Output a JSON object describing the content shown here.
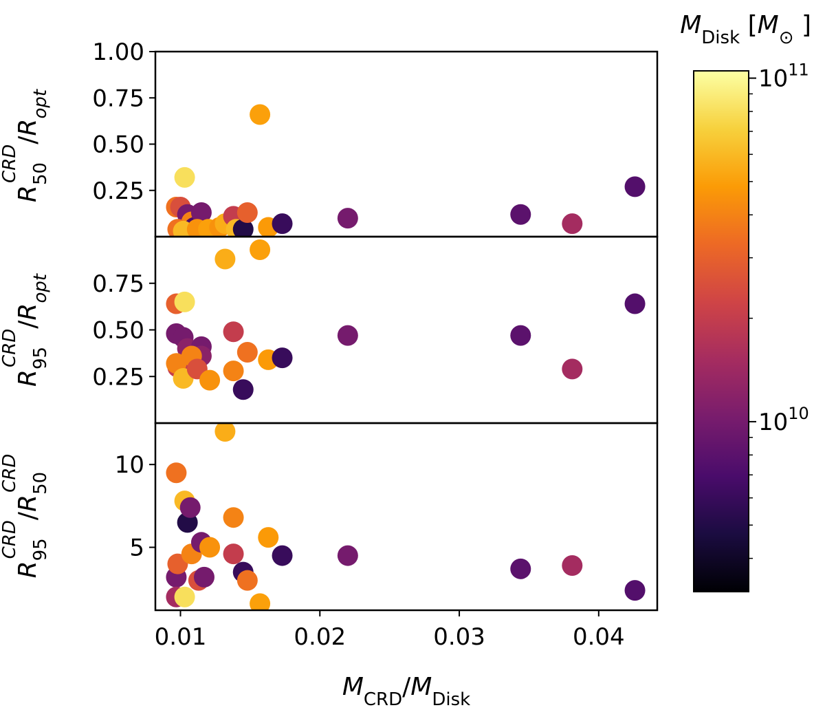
{
  "chart_data": {
    "type": "scatter",
    "xlabel": {
      "base": "M",
      "base_sub": "CRD",
      "slash": "/",
      "base2": "M",
      "base2_sub": "Disk"
    },
    "x_ticks": [
      "0.01",
      "0.02",
      "0.03",
      "0.04"
    ],
    "xlim": [
      0.0082,
      0.0442
    ],
    "colorbar": {
      "title": {
        "base": "M",
        "sub": "Disk",
        "unit_open": " [",
        "unit": "M",
        "unit_sub": "⊙",
        "unit_close": " ]"
      },
      "scale": "log",
      "range": [
        3200000000.0,
        105000000000.0
      ],
      "ticks": [
        {
          "base": "10",
          "exp": "11",
          "value": 100000000000.0
        },
        {
          "base": "10",
          "exp": "10",
          "value": 10000000000.0
        }
      ],
      "colormap": "inferno",
      "colormap_stops": [
        "#000004",
        "#1b0c41",
        "#4a0c6b",
        "#781c6d",
        "#a52c60",
        "#cf4446",
        "#ed6925",
        "#fb9b06",
        "#f7d13d",
        "#fcffa4"
      ]
    },
    "panels": [
      {
        "ylabel": {
          "base": "R",
          "sub": "50",
          "sup": "CRD",
          "slash": "/",
          "base2": "R",
          "base2_sub": "opt"
        },
        "ylim": [
          0.0,
          1.0
        ],
        "y_ticks": [
          "0.25",
          "0.50",
          "0.75",
          "1.00"
        ],
        "points": [
          {
            "x": 0.0097,
            "y": 0.16,
            "c": 35000000000.0
          },
          {
            "x": 0.01,
            "y": 0.16,
            "c": 25000000000.0
          },
          {
            "x": 0.0103,
            "y": 0.32,
            "c": 80000000000.0
          },
          {
            "x": 0.0105,
            "y": 0.12,
            "c": 10000000000.0
          },
          {
            "x": 0.0108,
            "y": 0.08,
            "c": 40000000000.0
          },
          {
            "x": 0.011,
            "y": 0.05,
            "c": 7000000000.0
          },
          {
            "x": 0.0115,
            "y": 0.13,
            "c": 10000000000.0
          },
          {
            "x": 0.0098,
            "y": 0.04,
            "c": 35000000000.0
          },
          {
            "x": 0.0102,
            "y": 0.03,
            "c": 60000000000.0
          },
          {
            "x": 0.0112,
            "y": 0.04,
            "c": 45000000000.0
          },
          {
            "x": 0.012,
            "y": 0.04,
            "c": 50000000000.0
          },
          {
            "x": 0.0128,
            "y": 0.05,
            "c": 45000000000.0
          },
          {
            "x": 0.0132,
            "y": 0.07,
            "c": 55000000000.0
          },
          {
            "x": 0.0138,
            "y": 0.11,
            "c": 20000000000.0
          },
          {
            "x": 0.014,
            "y": 0.04,
            "c": 60000000000.0
          },
          {
            "x": 0.0145,
            "y": 0.04,
            "c": 5000000000.0
          },
          {
            "x": 0.0148,
            "y": 0.13,
            "c": 30000000000.0
          },
          {
            "x": 0.0157,
            "y": 0.66,
            "c": 50000000000.0
          },
          {
            "x": 0.0163,
            "y": 0.05,
            "c": 48000000000.0
          },
          {
            "x": 0.0173,
            "y": 0.07,
            "c": 6000000000.0
          },
          {
            "x": 0.022,
            "y": 0.1,
            "c": 10000000000.0
          },
          {
            "x": 0.0344,
            "y": 0.12,
            "c": 8000000000.0
          },
          {
            "x": 0.0381,
            "y": 0.07,
            "c": 15000000000.0
          },
          {
            "x": 0.0426,
            "y": 0.27,
            "c": 7500000000.0
          }
        ]
      },
      {
        "ylabel": {
          "base": "R",
          "sub": "95",
          "sup": "CRD",
          "slash": "/",
          "base2": "R",
          "base2_sub": "opt"
        },
        "ylim": [
          0.0,
          1.0
        ],
        "y_ticks": [
          "0.25",
          "0.50",
          "0.75"
        ],
        "points": [
          {
            "x": 0.0097,
            "y": 0.48,
            "c": 10000000000.0
          },
          {
            "x": 0.0097,
            "y": 0.64,
            "c": 30000000000.0
          },
          {
            "x": 0.0103,
            "y": 0.65,
            "c": 80000000000.0
          },
          {
            "x": 0.0102,
            "y": 0.46,
            "c": 10000000000.0
          },
          {
            "x": 0.0105,
            "y": 0.4,
            "c": 12000000000.0
          },
          {
            "x": 0.0115,
            "y": 0.41,
            "c": 10000000000.0
          },
          {
            "x": 0.0115,
            "y": 0.36,
            "c": 12000000000.0
          },
          {
            "x": 0.0098,
            "y": 0.3,
            "c": 20000000000.0
          },
          {
            "x": 0.0097,
            "y": 0.32,
            "c": 40000000000.0
          },
          {
            "x": 0.0102,
            "y": 0.24,
            "c": 60000000000.0
          },
          {
            "x": 0.0108,
            "y": 0.36,
            "c": 40000000000.0
          },
          {
            "x": 0.0112,
            "y": 0.29,
            "c": 25000000000.0
          },
          {
            "x": 0.0121,
            "y": 0.23,
            "c": 45000000000.0
          },
          {
            "x": 0.0132,
            "y": 0.88,
            "c": 55000000000.0
          },
          {
            "x": 0.0138,
            "y": 0.49,
            "c": 20000000000.0
          },
          {
            "x": 0.0138,
            "y": 0.28,
            "c": 40000000000.0
          },
          {
            "x": 0.0145,
            "y": 0.18,
            "c": 6000000000.0
          },
          {
            "x": 0.0148,
            "y": 0.38,
            "c": 35000000000.0
          },
          {
            "x": 0.0157,
            "y": 0.93,
            "c": 50000000000.0
          },
          {
            "x": 0.0163,
            "y": 0.34,
            "c": 48000000000.0
          },
          {
            "x": 0.0173,
            "y": 0.35,
            "c": 6000000000.0
          },
          {
            "x": 0.022,
            "y": 0.47,
            "c": 10000000000.0
          },
          {
            "x": 0.0344,
            "y": 0.47,
            "c": 8000000000.0
          },
          {
            "x": 0.0381,
            "y": 0.29,
            "c": 15000000000.0
          },
          {
            "x": 0.0426,
            "y": 0.64,
            "c": 7500000000.0
          }
        ]
      },
      {
        "ylabel": {
          "base": "R",
          "sub": "95",
          "sup": "CRD",
          "slash": "/",
          "base2": "R",
          "base2_sub": "50",
          "base2_sup": "CRD"
        },
        "ylim": [
          1.2,
          12.5
        ],
        "y_ticks": [
          "5",
          "10"
        ],
        "points": [
          {
            "x": 0.0097,
            "y": 9.5,
            "c": 35000000000.0
          },
          {
            "x": 0.0097,
            "y": 3.2,
            "c": 10000000000.0
          },
          {
            "x": 0.0097,
            "y": 2.0,
            "c": 15000000000.0
          },
          {
            "x": 0.0098,
            "y": 4.0,
            "c": 30000000000.0
          },
          {
            "x": 0.0103,
            "y": 7.8,
            "c": 60000000000.0
          },
          {
            "x": 0.0105,
            "y": 6.5,
            "c": 5000000000.0
          },
          {
            "x": 0.0107,
            "y": 7.4,
            "c": 10000000000.0
          },
          {
            "x": 0.0103,
            "y": 2.0,
            "c": 80000000000.0
          },
          {
            "x": 0.0108,
            "y": 4.6,
            "c": 40000000000.0
          },
          {
            "x": 0.0113,
            "y": 3.0,
            "c": 25000000000.0
          },
          {
            "x": 0.0115,
            "y": 5.3,
            "c": 10000000000.0
          },
          {
            "x": 0.0117,
            "y": 3.2,
            "c": 10000000000.0
          },
          {
            "x": 0.0121,
            "y": 5.0,
            "c": 45000000000.0
          },
          {
            "x": 0.0132,
            "y": 12.0,
            "c": 55000000000.0
          },
          {
            "x": 0.0138,
            "y": 6.8,
            "c": 40000000000.0
          },
          {
            "x": 0.0138,
            "y": 4.6,
            "c": 20000000000.0
          },
          {
            "x": 0.0145,
            "y": 3.5,
            "c": 6000000000.0
          },
          {
            "x": 0.0148,
            "y": 3.0,
            "c": 35000000000.0
          },
          {
            "x": 0.0157,
            "y": 1.6,
            "c": 50000000000.0
          },
          {
            "x": 0.0163,
            "y": 5.6,
            "c": 48000000000.0
          },
          {
            "x": 0.0173,
            "y": 4.5,
            "c": 6000000000.0
          },
          {
            "x": 0.022,
            "y": 4.5,
            "c": 10000000000.0
          },
          {
            "x": 0.0344,
            "y": 3.7,
            "c": 8000000000.0
          },
          {
            "x": 0.0381,
            "y": 3.9,
            "c": 15000000000.0
          },
          {
            "x": 0.0426,
            "y": 2.4,
            "c": 7500000000.0
          }
        ]
      }
    ]
  }
}
